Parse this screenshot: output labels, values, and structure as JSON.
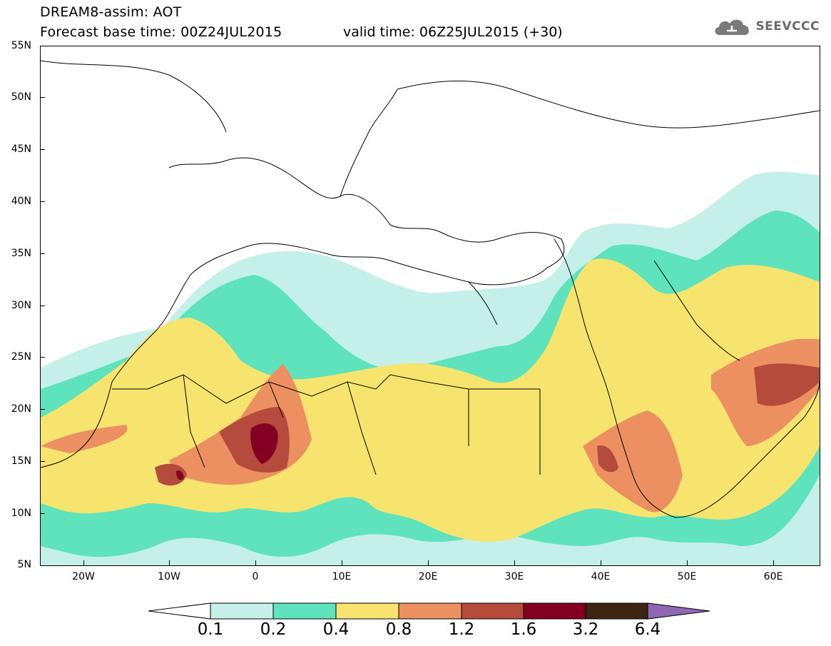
{
  "header": {
    "title": "DREAM8-assim: AOT",
    "base_time": "Forecast base time: 00Z24JUL2015",
    "valid_time": "valid time: 06Z25JUL2015 (+30)",
    "logo_text": "SEEVCCC",
    "logo_icon": "cloud-icon"
  },
  "axes": {
    "lat_labels": [
      "55N",
      "50N",
      "45N",
      "40N",
      "35N",
      "30N",
      "25N",
      "20N",
      "15N",
      "10N",
      "5N"
    ],
    "lon_labels": [
      "20W",
      "10W",
      "0",
      "10E",
      "20E",
      "30E",
      "40E",
      "50E",
      "60E"
    ]
  },
  "legend": {
    "labels": [
      "0.1",
      "0.2",
      "0.4",
      "0.8",
      "1.2",
      "1.6",
      "3.2",
      "6.4"
    ],
    "colors": [
      "#ffffff",
      "#c5efe9",
      "#5ee3bd",
      "#f6e46e",
      "#ec8f61",
      "#b54b3c",
      "#840022",
      "#3c2611",
      "#8f67b4"
    ]
  }
}
